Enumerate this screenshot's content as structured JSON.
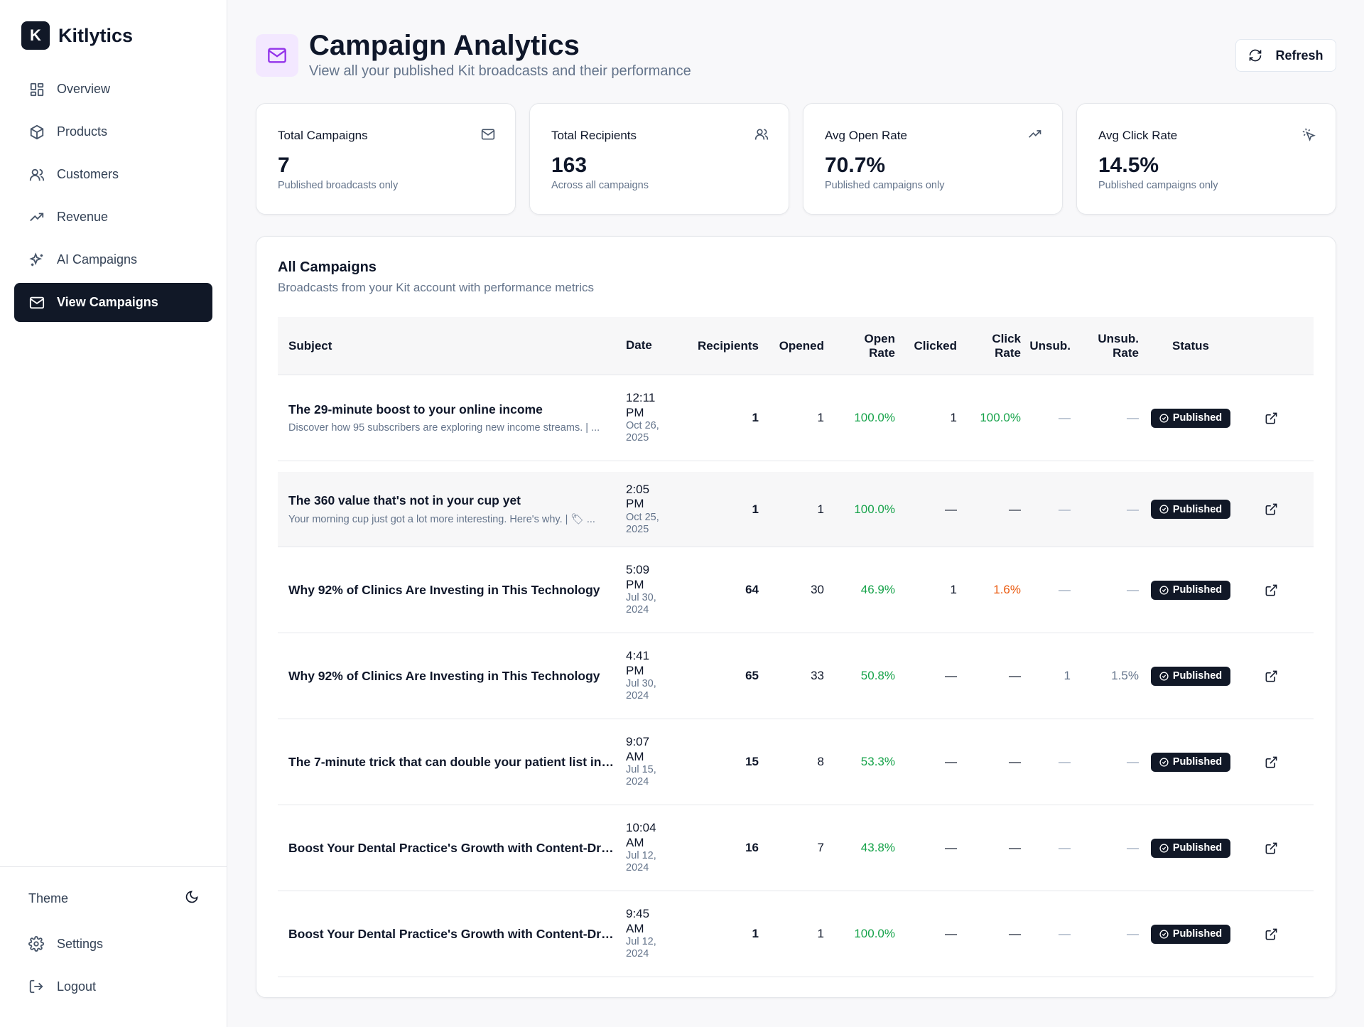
{
  "app": {
    "brand_initial": "K",
    "brand_name": "Kitlytics"
  },
  "sidebar": {
    "items": [
      {
        "label": "Overview",
        "icon": "layout-grid-icon"
      },
      {
        "label": "Products",
        "icon": "package-icon"
      },
      {
        "label": "Customers",
        "icon": "users-icon"
      },
      {
        "label": "Revenue",
        "icon": "trending-up-icon"
      },
      {
        "label": "AI Campaigns",
        "icon": "sparkles-icon"
      },
      {
        "label": "View Campaigns",
        "icon": "mail-icon",
        "active": true
      }
    ],
    "theme_label": "Theme",
    "settings_label": "Settings",
    "logout_label": "Logout"
  },
  "header": {
    "title": "Campaign Analytics",
    "subtitle": "View all your published Kit broadcasts and their performance",
    "refresh_label": "Refresh"
  },
  "stats": [
    {
      "label": "Total Campaigns",
      "value": "7",
      "note": "Published broadcasts only",
      "icon": "mail-icon"
    },
    {
      "label": "Total Recipients",
      "value": "163",
      "note": "Across all campaigns",
      "icon": "users-icon"
    },
    {
      "label": "Avg Open Rate",
      "value": "70.7%",
      "note": "Published campaigns only",
      "icon": "trending-up-icon"
    },
    {
      "label": "Avg Click Rate",
      "value": "14.5%",
      "note": "Published campaigns only",
      "icon": "mouse-pointer-click-icon"
    }
  ],
  "panel": {
    "title": "All Campaigns",
    "subtitle": "Broadcasts from your Kit account with performance metrics",
    "columns": {
      "subject": "Subject",
      "date": "Date",
      "recipients": "Recipients",
      "opened": "Opened",
      "open_rate_1": "Open",
      "open_rate_2": "Rate",
      "clicked": "Clicked",
      "click_rate_1": "Click",
      "click_rate_2": "Rate",
      "unsub": "Unsub.",
      "unsub_rate_1": "Unsub.",
      "unsub_rate_2": "Rate",
      "status": "Status"
    },
    "rows": [
      {
        "subject": "The 29-minute boost to your online income",
        "preview": "Discover how 95 subscribers are exploring new income streams. | ...",
        "time_1": "12:11",
        "time_2": "PM",
        "date_1": "Oct 26,",
        "date_2": "2025",
        "recipients": "1",
        "opened": "1",
        "open_rate": "100.0%",
        "clicked": "1",
        "click_rate": "100.0%",
        "click_rate_color": "green",
        "unsub": "—",
        "unsub_rate": "—",
        "status": "Published"
      },
      {
        "subject": "The 360 value that's not in your cup yet",
        "preview": "Your morning cup just got a lot more interesting. Here's why. | 🏷 ...",
        "time_1": "2:05",
        "time_2": "PM",
        "date_1": "Oct 25,",
        "date_2": "2025",
        "recipients": "1",
        "opened": "1",
        "open_rate": "100.0%",
        "clicked": "—",
        "click_rate": "—",
        "click_rate_color": "dash",
        "unsub": "—",
        "unsub_rate": "—",
        "status": "Published"
      },
      {
        "subject": "Why 92% of Clinics Are Investing in This Technology",
        "preview": "",
        "time_1": "5:09",
        "time_2": "PM",
        "date_1": "Jul 30,",
        "date_2": "2024",
        "recipients": "64",
        "opened": "30",
        "open_rate": "46.9%",
        "clicked": "1",
        "click_rate": "1.6%",
        "click_rate_color": "orange",
        "unsub": "—",
        "unsub_rate": "—",
        "status": "Published"
      },
      {
        "subject": "Why 92% of Clinics Are Investing in This Technology",
        "preview": "",
        "time_1": "4:41",
        "time_2": "PM",
        "date_1": "Jul 30,",
        "date_2": "2024",
        "recipients": "65",
        "opened": "33",
        "open_rate": "50.8%",
        "clicked": "—",
        "click_rate": "—",
        "click_rate_color": "dash",
        "unsub": "1",
        "unsub_rate": "1.5%",
        "status": "Published"
      },
      {
        "subject": "The 7-minute trick that can double your patient list in 9...",
        "preview": "",
        "time_1": "9:07",
        "time_2": "AM",
        "date_1": "Jul 15,",
        "date_2": "2024",
        "recipients": "15",
        "opened": "8",
        "open_rate": "53.3%",
        "clicked": "—",
        "click_rate": "—",
        "click_rate_color": "dash",
        "unsub": "—",
        "unsub_rate": "—",
        "status": "Published"
      },
      {
        "subject": "Boost Your Dental Practice's Growth with Content-Drive...",
        "preview": "",
        "time_1": "10:04",
        "time_2": "AM",
        "date_1": "Jul 12,",
        "date_2": "2024",
        "recipients": "16",
        "opened": "7",
        "open_rate": "43.8%",
        "clicked": "—",
        "click_rate": "—",
        "click_rate_color": "dash",
        "unsub": "—",
        "unsub_rate": "—",
        "status": "Published"
      },
      {
        "subject": "Boost Your Dental Practice's Growth with Content-Drive...",
        "preview": "",
        "time_1": "9:45",
        "time_2": "AM",
        "date_1": "Jul 12,",
        "date_2": "2024",
        "recipients": "1",
        "opened": "1",
        "open_rate": "100.0%",
        "clicked": "—",
        "click_rate": "—",
        "click_rate_color": "dash",
        "unsub": "—",
        "unsub_rate": "—",
        "status": "Published"
      }
    ]
  },
  "colors": {
    "accent": "#111827",
    "positive": "#16a34a",
    "warning": "#ea580c",
    "header_icon_bg": "#f3e8ff",
    "header_icon": "#9333ea"
  }
}
